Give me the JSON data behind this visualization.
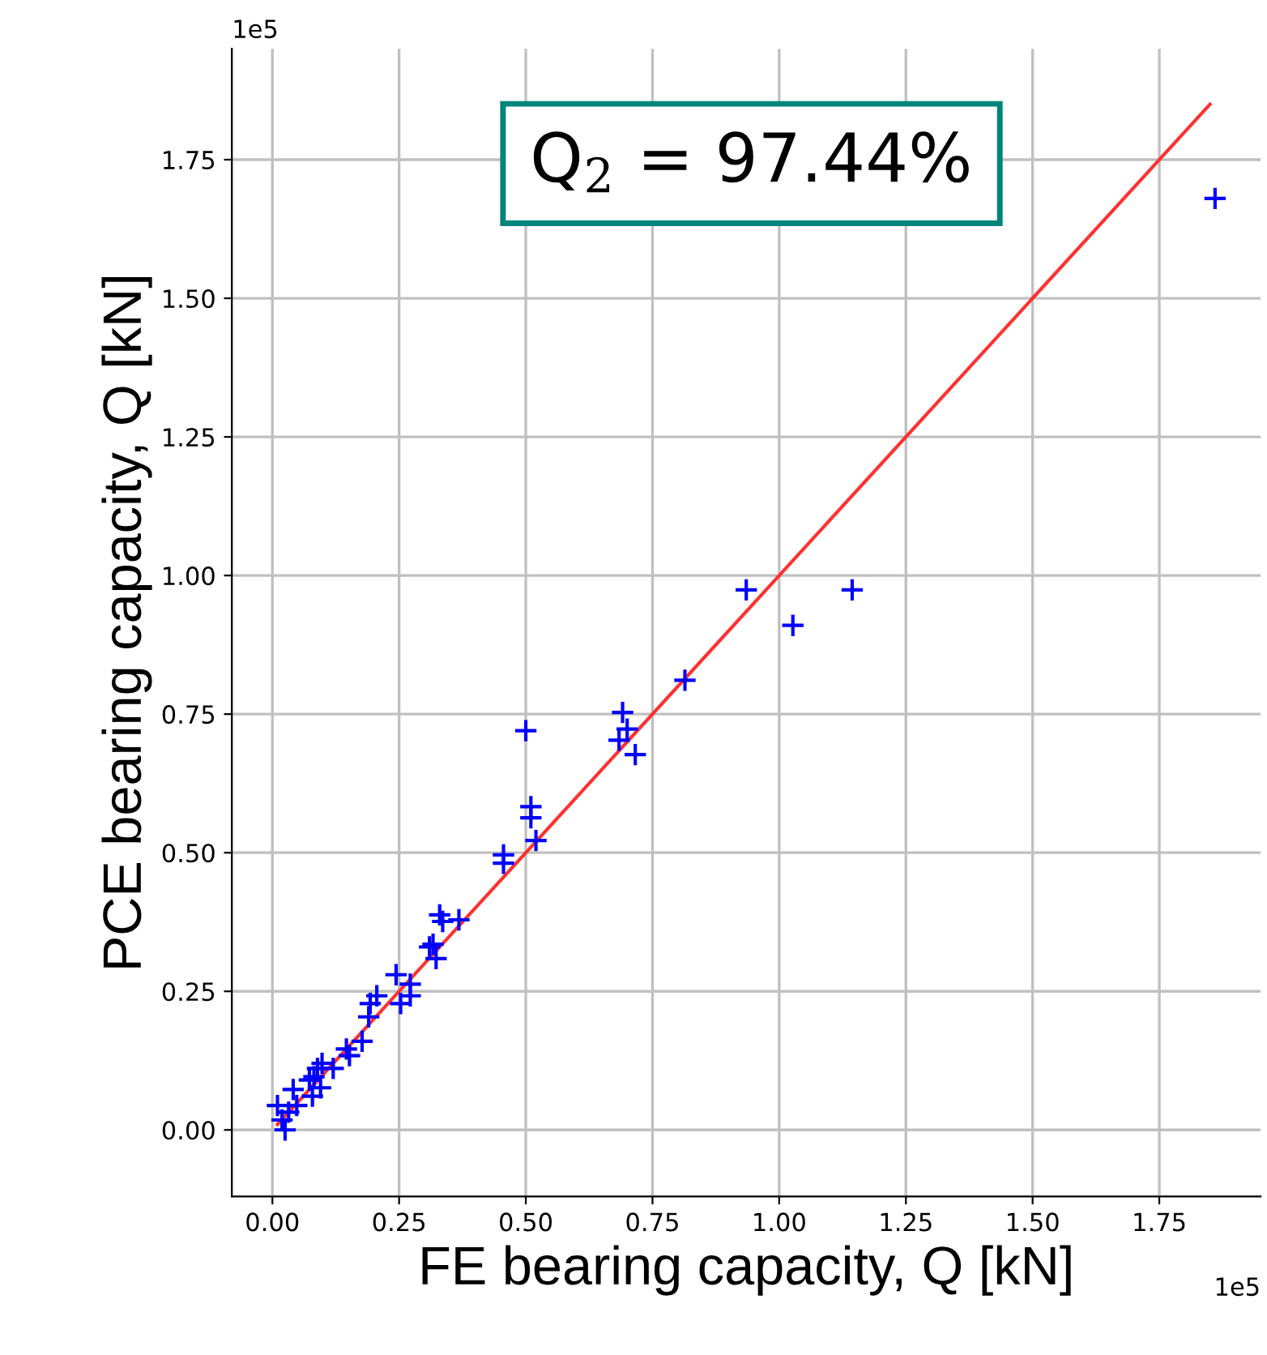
{
  "chart_data": {
    "type": "scatter",
    "xlabel": "FE bearing capacity, Q [kN]",
    "ylabel": "PCE bearing capacity, Q [kN]",
    "annotations": [
      "Q$_{2}$ = 97.44%",
      "1e5",
      "1e5"
    ],
    "series": [
      {
        "color": "#0000ff",
        "marker": "cross",
        "x": [
          1.86,
          0.935,
          1.027,
          1.144,
          0.814,
          0.5,
          0.51,
          0.51,
          0.52,
          0.456,
          0.456,
          0.691,
          0.7,
          0.684,
          0.716,
          0.33,
          0.368,
          0.336,
          0.317,
          0.31,
          0.323,
          0.244,
          0.272,
          0.272,
          0.253,
          0.206,
          0.193,
          0.19,
          0.177,
          0.146,
          0.152,
          0.12,
          0.098,
          0.089,
          0.082,
          0.073,
          0.095,
          0.079,
          0.041,
          0.048,
          0.032,
          0.01,
          0.025,
          0.019
        ],
        "values": [
          1.68,
          0.974,
          0.91,
          0.974,
          0.811,
          0.72,
          0.583,
          0.563,
          0.522,
          0.496,
          0.481,
          0.753,
          0.723,
          0.703,
          0.677,
          0.388,
          0.379,
          0.376,
          0.335,
          0.33,
          0.309,
          0.28,
          0.263,
          0.242,
          0.228,
          0.242,
          0.228,
          0.204,
          0.16,
          0.146,
          0.134,
          0.111,
          0.12,
          0.111,
          0.096,
          0.09,
          0.076,
          0.061,
          0.073,
          0.044,
          0.032,
          0.044,
          0.0,
          0.018
        ]
      },
      {
        "type": "line",
        "color": "#ff3030",
        "marker": "none",
        "line_style": "solid",
        "x": [
          0.01,
          1.85
        ],
        "values": [
          0.01,
          1.85
        ]
      }
    ],
    "xlim": [
      -0.08,
      1.95
    ],
    "ylim": [
      -0.12,
      1.95
    ],
    "xticks": [
      {
        "value": 0,
        "label": "0.00"
      },
      {
        "value": 0.25,
        "label": "0.25"
      },
      {
        "value": 0.5,
        "label": "0.50"
      },
      {
        "value": 0.75,
        "label": "0.75"
      },
      {
        "value": 1.0,
        "label": "1.00"
      },
      {
        "value": 1.25,
        "label": "1.25"
      },
      {
        "value": 1.5,
        "label": "1.50"
      },
      {
        "value": 1.75,
        "label": "1.75"
      }
    ],
    "yticks": [
      {
        "value": 0,
        "label": "0.00"
      },
      {
        "value": 0.25,
        "label": "0.25"
      },
      {
        "value": 0.5,
        "label": "0.50"
      },
      {
        "value": 0.75,
        "label": "0.75"
      },
      {
        "value": 1.0,
        "label": "1.00"
      },
      {
        "value": 1.25,
        "label": "1.25"
      },
      {
        "value": 1.5,
        "label": "1.50"
      },
      {
        "value": 1.75,
        "label": "1.75"
      }
    ],
    "grid": true
  }
}
